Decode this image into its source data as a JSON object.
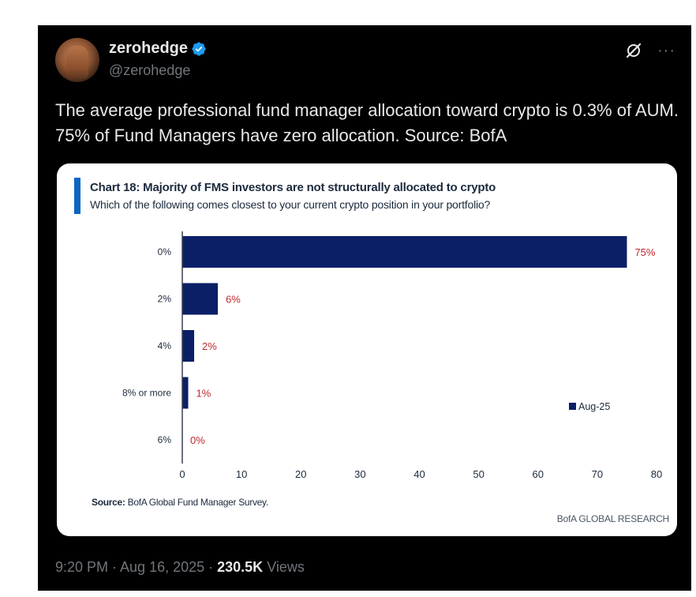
{
  "tweet": {
    "display_name": "zerohedge",
    "handle": "@zerohedge",
    "text": "The average professional fund manager allocation toward crypto is 0.3% of AUM. 75% of Fund Managers have zero allocation. Source: BofA",
    "more_label": "···",
    "timestamp": "9:20 PM · Aug 16, 2025",
    "separator": " · ",
    "views_count": "230.5K",
    "views_label": " Views",
    "colors": {
      "verified": "#1d9bf0",
      "background": "#000000",
      "muted": "#71767b"
    }
  },
  "card": {
    "source_label": "Source:",
    "source_text": " BofA Global Fund Manager Survey.",
    "brand": "BofA GLOBAL RESEARCH"
  },
  "chart_data": {
    "type": "bar",
    "orientation": "horizontal",
    "title": "Chart 18: Majority of FMS investors are not structurally allocated to crypto",
    "subtitle": "Which of the following comes closest to your current crypto position in your portfolio?",
    "categories": [
      "0%",
      "2%",
      "4%",
      "8% or more",
      "6%"
    ],
    "series": [
      {
        "name": "Aug-25",
        "values": [
          75,
          6,
          2,
          1,
          0
        ],
        "color": "#0b1f66"
      }
    ],
    "data_labels": [
      "75%",
      "6%",
      "2%",
      "1%",
      "0%"
    ],
    "data_label_color": "#c0272d",
    "x_ticks": [
      "0",
      "10",
      "20",
      "30",
      "40",
      "50",
      "60",
      "70",
      "80"
    ],
    "xlim": [
      0,
      80
    ],
    "grid": false,
    "legend_position": "right"
  }
}
